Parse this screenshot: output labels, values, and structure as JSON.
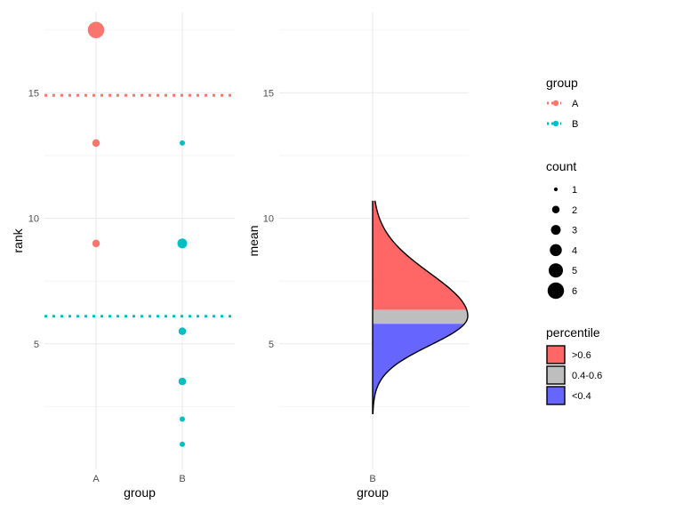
{
  "chart_data": [
    {
      "type": "scatter",
      "xlabel": "group",
      "ylabel": "rank",
      "categories": [
        "A",
        "B"
      ],
      "ylim": [
        0,
        18.2
      ],
      "yticks": [
        5,
        10,
        15
      ],
      "points": [
        {
          "group": "A",
          "y": 17.5,
          "count": 6
        },
        {
          "group": "A",
          "y": 13,
          "count": 2
        },
        {
          "group": "A",
          "y": 9,
          "count": 2
        },
        {
          "group": "B",
          "y": 13,
          "count": 1
        },
        {
          "group": "B",
          "y": 9,
          "count": 3
        },
        {
          "group": "B",
          "y": 5.5,
          "count": 2
        },
        {
          "group": "B",
          "y": 3.5,
          "count": 2
        },
        {
          "group": "B",
          "y": 2,
          "count": 1
        },
        {
          "group": "B",
          "y": 1,
          "count": 1
        }
      ],
      "hlines": [
        {
          "group": "A",
          "y": 14.9
        },
        {
          "group": "B",
          "y": 6.1
        }
      ]
    },
    {
      "type": "area",
      "xlabel": "group",
      "ylabel": "mean",
      "categories": [
        "B"
      ],
      "ylim": [
        0,
        18.2
      ],
      "yticks": [
        5,
        10,
        15
      ],
      "density": {
        "group": "B",
        "y_range": [
          2.2,
          10.7
        ],
        "peak": 6.1,
        "percentile_bands": [
          {
            "label": ">0.6",
            "from": 6.35,
            "to": 10.7
          },
          {
            "label": "0.4-0.6",
            "from": 5.8,
            "to": 6.35
          },
          {
            "label": "<0.4",
            "from": 2.2,
            "to": 5.8
          }
        ]
      }
    }
  ],
  "legend": {
    "group": {
      "title": "group",
      "items": [
        "A",
        "B"
      ]
    },
    "count": {
      "title": "count",
      "items": [
        "1",
        "2",
        "3",
        "4",
        "5",
        "6"
      ]
    },
    "percentile": {
      "title": "percentile",
      "items": [
        ">0.6",
        "0.4-0.6",
        "<0.4"
      ]
    }
  },
  "colors": {
    "A": "#F8766D",
    "B": "#00BFC4",
    "high": "#FF6666",
    "mid": "#BEBEBE",
    "low": "#6666FF",
    "grid_major": "#EBEBEB",
    "grid_minor": "#F2F2F2"
  }
}
